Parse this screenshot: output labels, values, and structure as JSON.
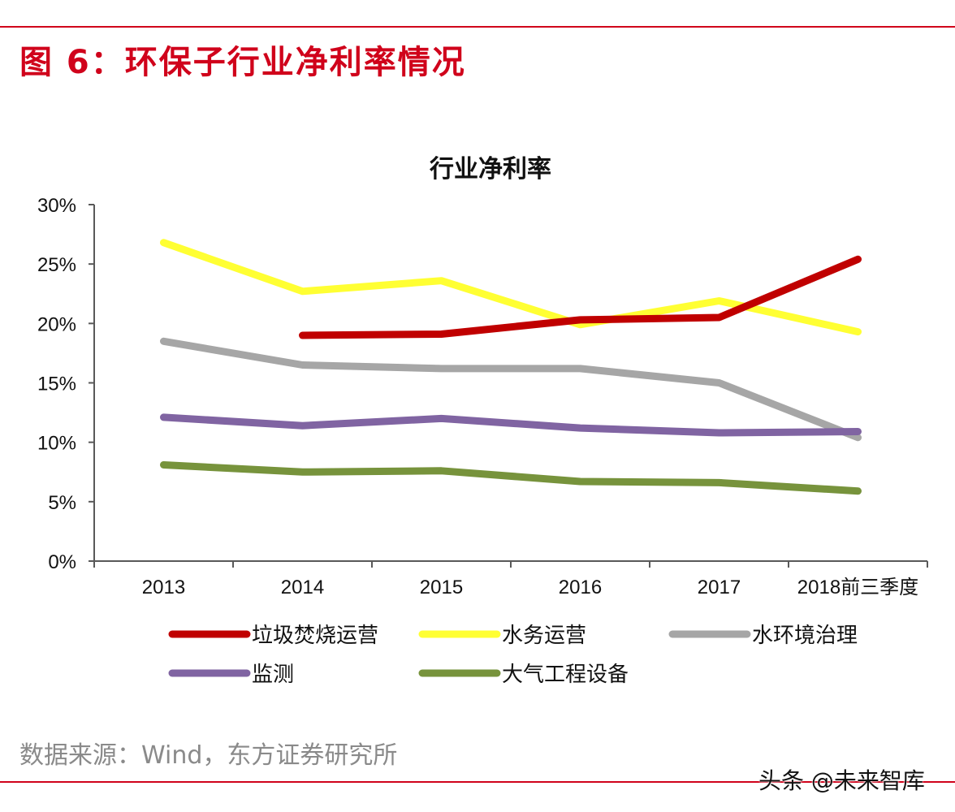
{
  "header": {
    "title": "图 6：环保子行业净利率情况"
  },
  "source": {
    "text": "数据来源：Wind，东方证券研究所"
  },
  "watermark": {
    "text": "头条 @未来智库"
  },
  "colors": {
    "accent_red": "#d0021b"
  },
  "chart_data": {
    "type": "line",
    "title": "行业净利率",
    "xlabel": "",
    "ylabel": "",
    "categories": [
      "2013",
      "2014",
      "2015",
      "2016",
      "2017",
      "2018前三季度"
    ],
    "ylim": [
      0,
      30
    ],
    "yticks": [
      0,
      5,
      10,
      15,
      20,
      25,
      30
    ],
    "ytick_labels": [
      "0%",
      "5%",
      "10%",
      "15%",
      "20%",
      "25%",
      "30%"
    ],
    "grid": false,
    "legend_position": "bottom",
    "series": [
      {
        "name": "垃圾焚烧运营",
        "color": "#c00000",
        "values": [
          null,
          19.0,
          19.1,
          20.3,
          20.5,
          25.4
        ]
      },
      {
        "name": "水务运营",
        "color": "#ffff33",
        "values": [
          26.8,
          22.7,
          23.6,
          19.9,
          21.9,
          19.3
        ]
      },
      {
        "name": "水环境治理",
        "color": "#a6a6a6",
        "values": [
          18.5,
          16.5,
          16.2,
          16.2,
          15.0,
          10.4
        ]
      },
      {
        "name": "监测",
        "color": "#8064a2",
        "values": [
          12.1,
          11.4,
          12.0,
          11.2,
          10.8,
          10.9
        ]
      },
      {
        "name": "大气工程设备",
        "color": "#77933c",
        "values": [
          8.1,
          7.5,
          7.6,
          6.7,
          6.6,
          5.9
        ]
      }
    ]
  }
}
